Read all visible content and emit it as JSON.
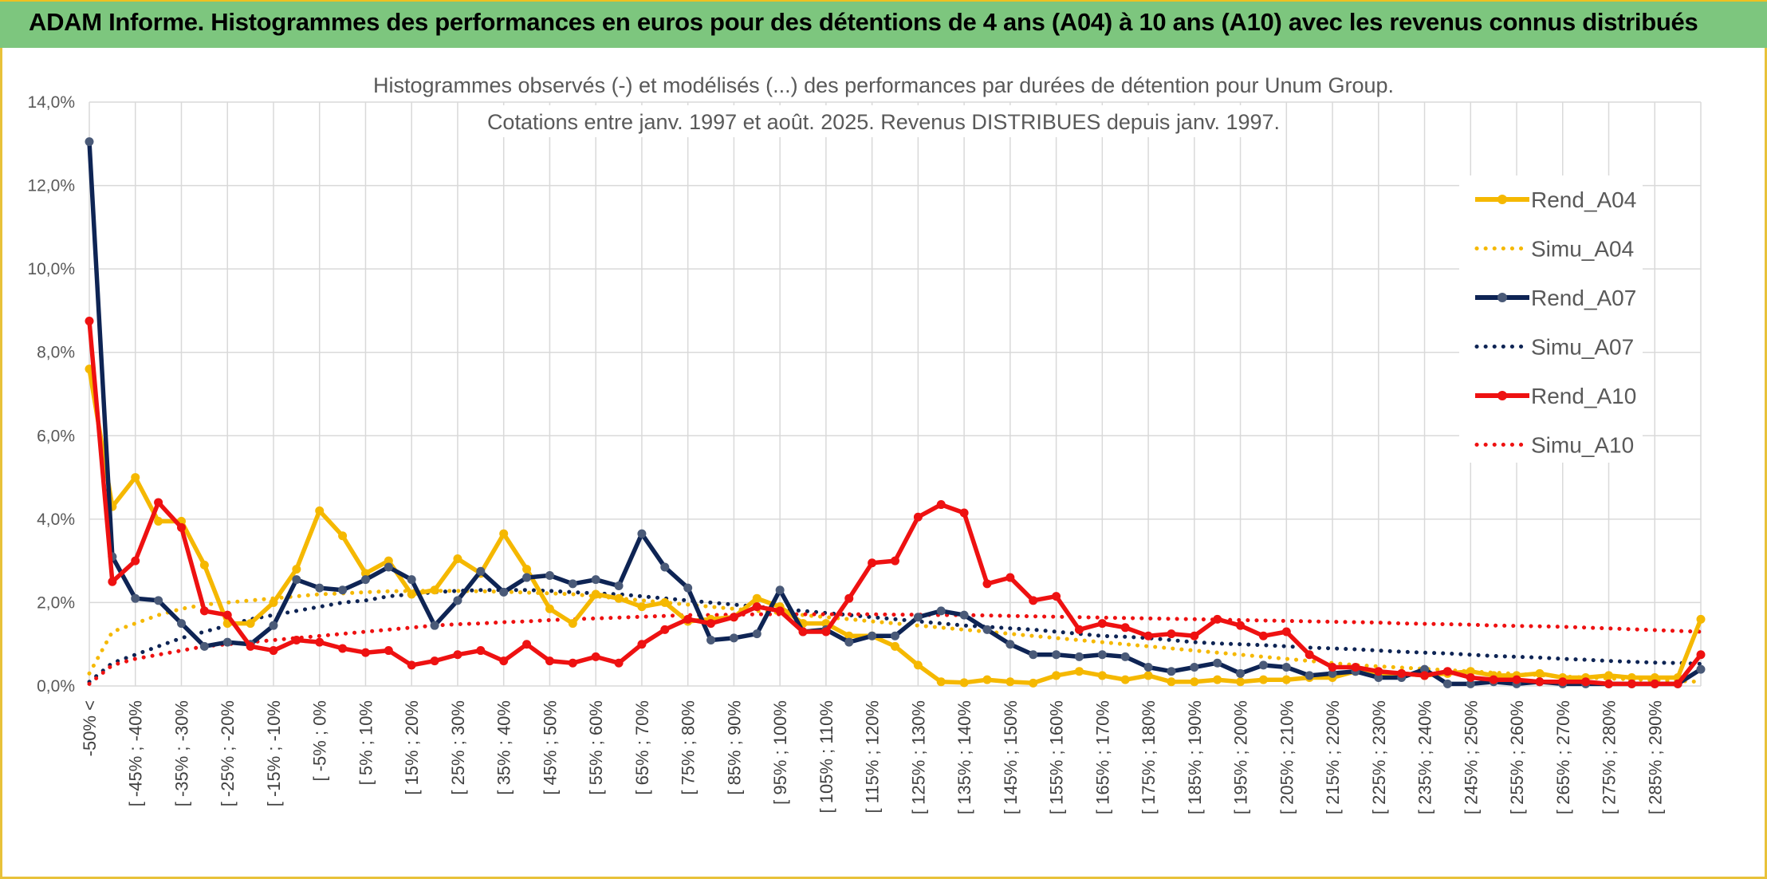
{
  "header": {
    "title": "ADAM Informe. Histogrammes des performances en euros pour des détentions de 4 ans (A04) à 10 ans (A10) avec les revenus connus distribués"
  },
  "chart_data": {
    "type": "line",
    "title_line1": "Histogrammes observés (-) et modélisés (...) des performances par durées de détention pour Unum Group.",
    "title_line2": "Cotations entre janv. 1997 et août. 2025. Revenus DISTRIBUES depuis janv. 1997.",
    "ylim": [
      0,
      14
    ],
    "yticks": [
      "0,0%",
      "2,0%",
      "4,0%",
      "6,0%",
      "8,0%",
      "10,0%",
      "12,0%",
      "14,0%"
    ],
    "x_tick_labels": [
      "-50% <",
      "[ -45% ; -40%",
      "[ -35% ; -30%",
      "[ -25% ; -20%",
      "[ -15% ; -10%",
      "[ -5% ; 0%",
      "[ 5% ; 10%",
      "[ 15% ; 20%",
      "[ 25% ; 30%",
      "[ 35% ; 40%",
      "[ 45% ; 50%",
      "[ 55% ; 60%",
      "[ 65% ; 70%",
      "[ 75% ; 80%",
      "[ 85% ; 90%",
      "[ 95% ; 100%",
      "[ 105% ; 110%",
      "[ 115% ; 120%",
      "[ 125% ; 130%",
      "[ 135% ; 140%",
      "[ 145% ; 150%",
      "[ 155% ; 160%",
      "[ 165% ; 170%",
      "[ 175% ; 180%",
      "[ 185% ; 190%",
      "[ 195% ; 200%",
      "[ 205% ; 210%",
      "[ 215% ; 220%",
      "[ 225% ; 230%",
      "[ 235% ; 240%",
      "[ 245% ; 250%",
      "[ 255% ; 260%",
      "[ 265% ; 270%",
      "[ 275% ; 280%",
      "[ 285% ; 290%"
    ],
    "n_points": 71,
    "grid": true,
    "legend_position": "right",
    "series": [
      {
        "name": "Rend_A04",
        "style": "solid",
        "color": "#f5b800",
        "values": [
          7.6,
          4.3,
          5.0,
          3.95,
          3.95,
          2.9,
          1.5,
          1.5,
          2.0,
          2.8,
          4.2,
          3.6,
          2.7,
          3.0,
          2.2,
          2.3,
          3.05,
          2.7,
          3.65,
          2.8,
          1.85,
          1.5,
          2.2,
          2.1,
          1.9,
          2.0,
          1.55,
          1.6,
          1.65,
          2.1,
          1.9,
          1.5,
          1.5,
          1.2,
          1.2,
          0.95,
          0.5,
          0.1,
          0.08,
          0.15,
          0.1,
          0.07,
          0.25,
          0.35,
          0.25,
          0.15,
          0.25,
          0.1,
          0.1,
          0.15,
          0.1,
          0.15,
          0.15,
          0.2,
          0.2,
          0.35,
          0.3,
          0.3,
          0.25,
          0.3,
          0.35,
          0.25,
          0.25,
          0.3,
          0.2,
          0.2,
          0.25,
          0.2,
          0.2,
          0.2,
          1.6
        ]
      },
      {
        "name": "Simu_A04",
        "style": "dotted",
        "color": "#f5b800",
        "values": [
          0.3,
          1.3,
          1.5,
          1.7,
          1.85,
          1.95,
          2.0,
          2.05,
          2.1,
          2.15,
          2.2,
          2.22,
          2.25,
          2.27,
          2.28,
          2.28,
          2.28,
          2.27,
          2.26,
          2.24,
          2.22,
          2.2,
          2.15,
          2.1,
          2.05,
          2.0,
          1.95,
          1.9,
          1.85,
          1.8,
          1.75,
          1.7,
          1.65,
          1.6,
          1.55,
          1.5,
          1.45,
          1.4,
          1.35,
          1.3,
          1.25,
          1.2,
          1.15,
          1.1,
          1.05,
          1.0,
          0.95,
          0.9,
          0.85,
          0.8,
          0.75,
          0.7,
          0.65,
          0.6,
          0.55,
          0.5,
          0.47,
          0.44,
          0.41,
          0.38,
          0.35,
          0.32,
          0.29,
          0.26,
          0.23,
          0.2,
          0.18,
          0.16,
          0.14,
          0.12,
          0.1
        ]
      },
      {
        "name": "Rend_A07",
        "style": "solid",
        "color": "#0e2454",
        "values": [
          13.05,
          3.1,
          2.1,
          2.05,
          1.5,
          0.95,
          1.05,
          1.0,
          1.45,
          2.55,
          2.35,
          2.3,
          2.55,
          2.85,
          2.55,
          1.45,
          2.05,
          2.75,
          2.25,
          2.6,
          2.65,
          2.45,
          2.55,
          2.4,
          3.65,
          2.85,
          2.35,
          1.1,
          1.15,
          1.25,
          2.3,
          1.3,
          1.35,
          1.05,
          1.2,
          1.2,
          1.65,
          1.8,
          1.7,
          1.35,
          1.0,
          0.75,
          0.75,
          0.7,
          0.75,
          0.7,
          0.45,
          0.35,
          0.45,
          0.55,
          0.3,
          0.5,
          0.45,
          0.25,
          0.3,
          0.35,
          0.2,
          0.2,
          0.4,
          0.05,
          0.05,
          0.1,
          0.05,
          0.1,
          0.05,
          0.05,
          0.05,
          0.05,
          0.05,
          0.05,
          0.4
        ]
      },
      {
        "name": "Simu_A07",
        "style": "dotted",
        "color": "#0e2454",
        "values": [
          0.1,
          0.55,
          0.75,
          0.95,
          1.15,
          1.3,
          1.45,
          1.6,
          1.7,
          1.8,
          1.9,
          2.0,
          2.05,
          2.15,
          2.2,
          2.25,
          2.28,
          2.3,
          2.3,
          2.3,
          2.28,
          2.25,
          2.22,
          2.2,
          2.15,
          2.1,
          2.05,
          2.0,
          1.95,
          1.9,
          1.85,
          1.8,
          1.75,
          1.7,
          1.65,
          1.6,
          1.55,
          1.5,
          1.45,
          1.42,
          1.38,
          1.35,
          1.3,
          1.25,
          1.2,
          1.18,
          1.15,
          1.1,
          1.05,
          1.02,
          1.0,
          0.98,
          0.95,
          0.92,
          0.9,
          0.88,
          0.85,
          0.82,
          0.8,
          0.78,
          0.75,
          0.72,
          0.7,
          0.68,
          0.65,
          0.63,
          0.6,
          0.58,
          0.56,
          0.55,
          0.53
        ]
      },
      {
        "name": "Rend_A10",
        "style": "solid",
        "color": "#ee1111",
        "values": [
          8.75,
          2.5,
          3.0,
          4.4,
          3.8,
          1.8,
          1.7,
          0.95,
          0.85,
          1.1,
          1.05,
          0.9,
          0.8,
          0.85,
          0.5,
          0.6,
          0.75,
          0.85,
          0.6,
          1.0,
          0.6,
          0.55,
          0.7,
          0.55,
          1.0,
          1.35,
          1.6,
          1.5,
          1.65,
          1.9,
          1.8,
          1.3,
          1.3,
          2.1,
          2.95,
          3.0,
          4.05,
          4.35,
          4.15,
          2.45,
          2.6,
          2.05,
          2.15,
          1.35,
          1.5,
          1.4,
          1.2,
          1.25,
          1.2,
          1.6,
          1.45,
          1.2,
          1.3,
          0.75,
          0.45,
          0.45,
          0.35,
          0.3,
          0.25,
          0.35,
          0.2,
          0.15,
          0.15,
          0.1,
          0.1,
          0.1,
          0.05,
          0.05,
          0.05,
          0.05,
          0.75
        ]
      },
      {
        "name": "Simu_A10",
        "style": "dotted",
        "color": "#ee1111",
        "values": [
          0.05,
          0.5,
          0.65,
          0.75,
          0.85,
          0.95,
          1.0,
          1.05,
          1.1,
          1.15,
          1.2,
          1.25,
          1.3,
          1.35,
          1.4,
          1.45,
          1.48,
          1.5,
          1.53,
          1.55,
          1.58,
          1.6,
          1.62,
          1.64,
          1.66,
          1.68,
          1.7,
          1.7,
          1.71,
          1.72,
          1.72,
          1.72,
          1.72,
          1.72,
          1.72,
          1.71,
          1.71,
          1.7,
          1.7,
          1.69,
          1.68,
          1.67,
          1.66,
          1.65,
          1.64,
          1.63,
          1.62,
          1.61,
          1.6,
          1.59,
          1.58,
          1.57,
          1.56,
          1.55,
          1.54,
          1.53,
          1.52,
          1.5,
          1.49,
          1.48,
          1.47,
          1.45,
          1.44,
          1.43,
          1.42,
          1.4,
          1.38,
          1.36,
          1.34,
          1.32,
          1.3
        ]
      }
    ]
  }
}
